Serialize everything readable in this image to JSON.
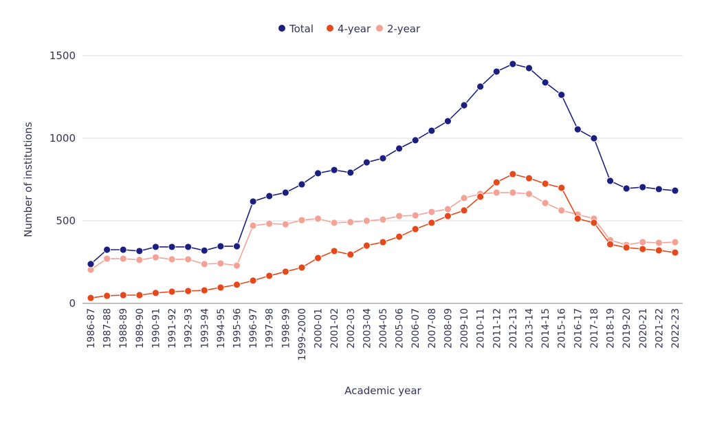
{
  "chart_data": {
    "type": "line",
    "title": "",
    "xlabel": "Academic year",
    "ylabel": "Number of institutions",
    "ylim": [
      0,
      1500
    ],
    "yticks": [
      0,
      500,
      1000,
      1500
    ],
    "grid": true,
    "legend_position": "top-center",
    "categories": [
      "1986-87",
      "1987-88",
      "1988-89",
      "1989-90",
      "1990-91",
      "1991-92",
      "1992-93",
      "1993-94",
      "1994-95",
      "1995-96",
      "1996-97",
      "1997-98",
      "1998-99",
      "1999-2000",
      "2000-01",
      "2001-02",
      "2002-03",
      "2003-04",
      "2004-05",
      "2005-06",
      "2006-07",
      "2007-08",
      "2008-09",
      "2009-10",
      "2010-11",
      "2011-12",
      "2012-13",
      "2013-14",
      "2014-15",
      "2015-16",
      "2016-17",
      "2017-18",
      "2018-19",
      "2019-20",
      "2020-21",
      "2021-22",
      "2022-23"
    ],
    "series": [
      {
        "name": "Total",
        "color": "#1b1f80",
        "values": [
          238,
          325,
          325,
          317,
          342,
          342,
          342,
          320,
          346,
          346,
          617,
          650,
          671,
          721,
          788,
          808,
          792,
          854,
          879,
          938,
          988,
          1046,
          1104,
          1200,
          1313,
          1404,
          1450,
          1425,
          1338,
          1263,
          1054,
          1000,
          742,
          696,
          704,
          692,
          683
        ]
      },
      {
        "name": "4-year",
        "color": "#e4481b",
        "values": [
          33,
          46,
          50,
          50,
          63,
          71,
          75,
          79,
          96,
          113,
          138,
          167,
          192,
          217,
          275,
          317,
          296,
          350,
          371,
          404,
          450,
          488,
          529,
          563,
          646,
          733,
          783,
          758,
          725,
          700,
          513,
          488,
          358,
          338,
          329,
          321,
          308
        ]
      },
      {
        "name": "2-year",
        "color": "#f4a196",
        "values": [
          204,
          271,
          271,
          263,
          279,
          267,
          267,
          238,
          242,
          229,
          471,
          483,
          479,
          504,
          513,
          488,
          492,
          500,
          508,
          529,
          533,
          554,
          571,
          638,
          663,
          671,
          671,
          663,
          608,
          563,
          538,
          513,
          383,
          354,
          371,
          367,
          371
        ]
      }
    ]
  }
}
